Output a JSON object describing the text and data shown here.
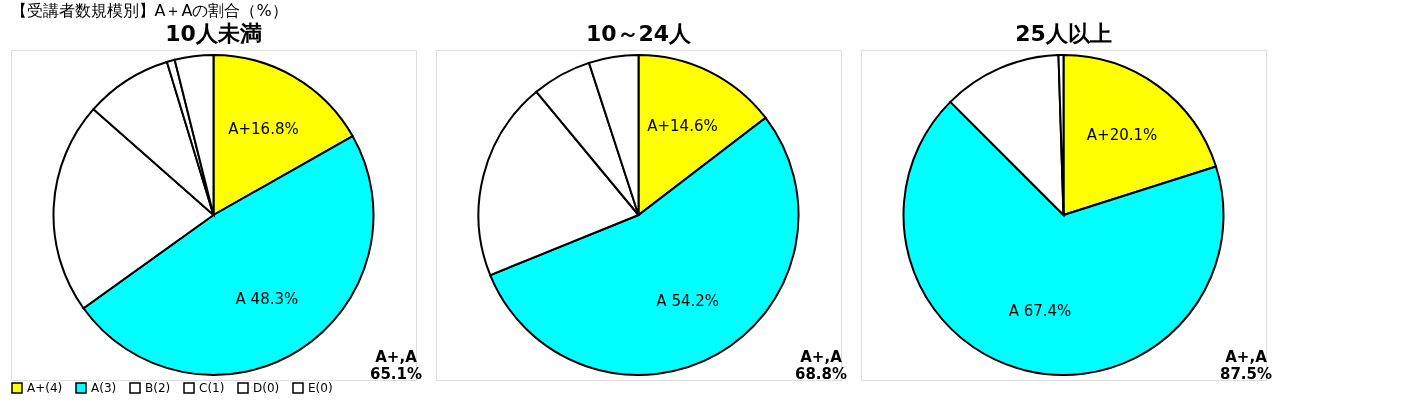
{
  "chart_data": [
    {
      "type": "pie",
      "title": "10人未満",
      "categories": [
        "A+(4)",
        "A(3)",
        "B(2)",
        "C(1)",
        "D(0)",
        "E(0)"
      ],
      "values": [
        16.8,
        48.3,
        21.4,
        8.8,
        0.8,
        3.9
      ],
      "colors": [
        "#ffff00",
        "#00ffff",
        "#ffffff",
        "#ffffff",
        "#ffffff",
        "#ffffff"
      ],
      "value_labels": [
        "A+16.8%",
        "A 48.3%",
        null,
        null,
        null,
        null
      ],
      "legend": "bottom left",
      "annotations": [
        "【受講者数規模別】A＋Aの割合（%）",
        "A+,A\n65.1%"
      ]
    },
    {
      "type": "pie",
      "title": "10～24人",
      "categories": [
        null,
        null,
        null,
        null,
        null,
        null
      ],
      "values": [
        14.6,
        54.2,
        20.1,
        6.0,
        null,
        5.0
      ],
      "colors": [
        "#ffff00",
        "#00ffff",
        "#ffffff",
        "#ffffff",
        "#ffffff",
        "#ffffff"
      ],
      "value_labels": [
        "A+14.6%",
        "A 54.2%",
        null,
        null,
        null,
        null
      ],
      "annotations": [
        "A+,A\n68.8%"
      ]
    },
    {
      "type": "pie",
      "title": "25人以上",
      "categories": [
        null,
        null,
        null,
        null,
        null,
        null
      ],
      "values": [
        20.1,
        67.4,
        12.0,
        null,
        0.5,
        null
      ],
      "colors": [
        "#ffff00",
        "#00ffff",
        "#ffffff",
        "#ffffff",
        "#ffffff",
        "#ffffff"
      ],
      "value_labels": [
        "A+20.1%",
        "A 67.4%",
        null,
        null,
        null,
        null
      ],
      "annotations": [
        "A+,A\n87.5%"
      ]
    }
  ]
}
